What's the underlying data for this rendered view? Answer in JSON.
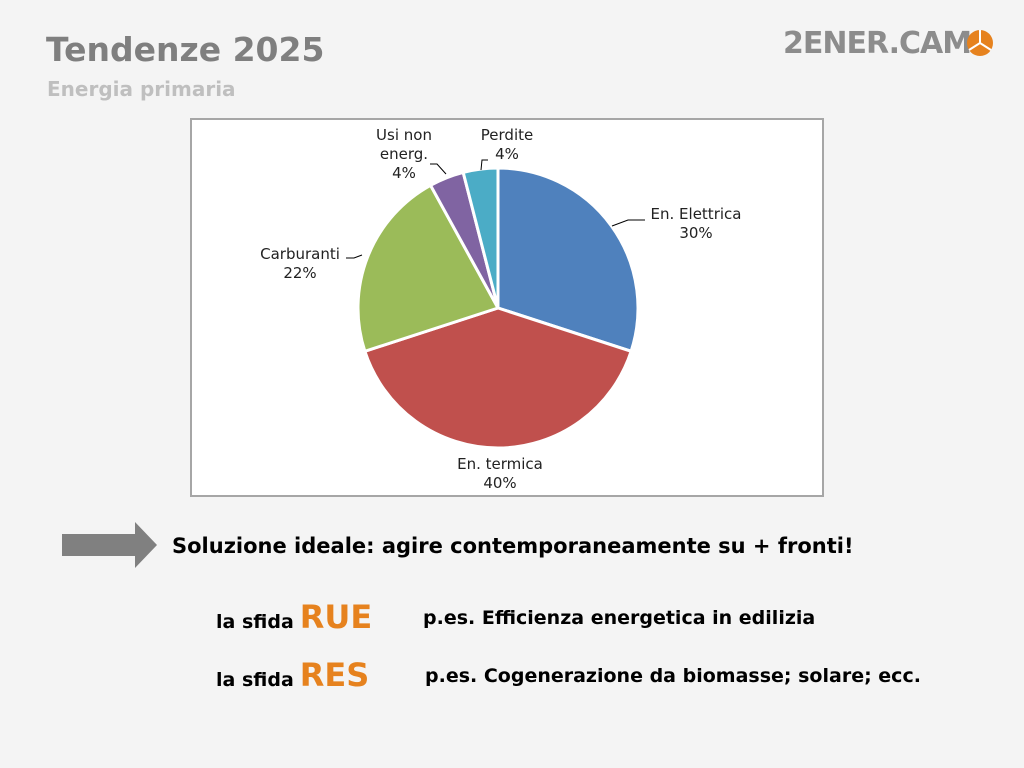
{
  "slide": {
    "title": "Tendenze 2025",
    "subtitle": "Energia primaria",
    "logo": "2ENER.CAM",
    "statement": "Soluzione ideale: agire contemporaneamente su + fronti!",
    "items": [
      {
        "lead": "la sfida",
        "key": "RUE",
        "text": "p.es. Efficienza energetica in edilizia"
      },
      {
        "lead": "la sfida",
        "key": "RES",
        "text": "p.es. Cogenerazione da biomasse; solare; ecc."
      }
    ]
  },
  "chart_data": {
    "type": "pie",
    "categories": [
      "En. Elettrica",
      "En. termica",
      "Carburanti",
      "Usi non energ.",
      "Perdite"
    ],
    "values": [
      30,
      40,
      22,
      4,
      4
    ],
    "value_labels": [
      "30%",
      "40%",
      "22%",
      "4%",
      "4%"
    ],
    "colors": [
      "#4f81bd",
      "#c0504d",
      "#9bbb59",
      "#8064a2",
      "#4bacc6"
    ]
  }
}
